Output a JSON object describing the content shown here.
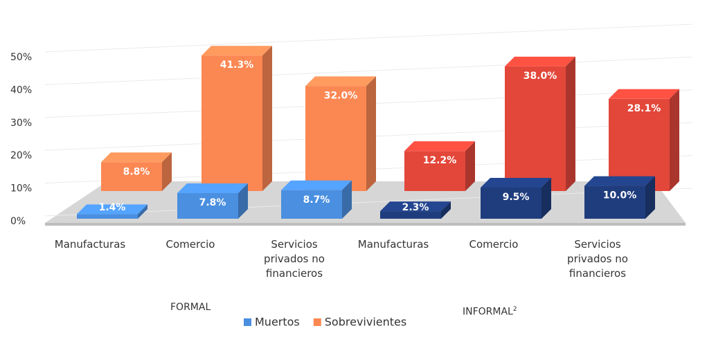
{
  "chart_data": {
    "type": "bar3d",
    "categories": [
      "Manufacturas",
      "Comercio",
      "Servicios privados no financieros",
      "Manufacturas",
      "Comercio",
      "Servicios privados no financieros"
    ],
    "groups": [
      {
        "name": "FORMAL"
      },
      {
        "name": "INFORMAL",
        "superscript": "2"
      }
    ],
    "series": [
      {
        "name": "Muertos",
        "color": "#4a8fe0",
        "colors": [
          "#4a8fe0",
          "#4a8fe0",
          "#4a8fe0",
          "#1f3d7d",
          "#1f3d7d",
          "#1f3d7d"
        ],
        "values": [
          1.4,
          7.8,
          8.7,
          2.3,
          9.5,
          10.0
        ],
        "value_labels": [
          "1.4%",
          "7.8%",
          "8.7%",
          "2.3%",
          "9.5%",
          "10.0%"
        ]
      },
      {
        "name": "Sobrevivientes",
        "color": "#fb8753",
        "colors": [
          "#fb8753",
          "#fb8753",
          "#fb8753",
          "#e2473a",
          "#e2473a",
          "#e2473a"
        ],
        "values": [
          8.8,
          41.3,
          32.0,
          12.2,
          38.0,
          28.1
        ],
        "value_labels": [
          "8.8%",
          "41.3%",
          "32.0%",
          "12.2%",
          "38.0%",
          "28.1%"
        ]
      }
    ],
    "ylim": [
      0,
      50
    ],
    "yticks": [
      {
        "value": 0,
        "label": "0%"
      },
      {
        "value": 10,
        "label": "10%"
      },
      {
        "value": 20,
        "label": "20%"
      },
      {
        "value": 30,
        "label": "30%"
      },
      {
        "value": 40,
        "label": "40%"
      },
      {
        "value": 50,
        "label": "50%"
      }
    ],
    "grid": true
  }
}
